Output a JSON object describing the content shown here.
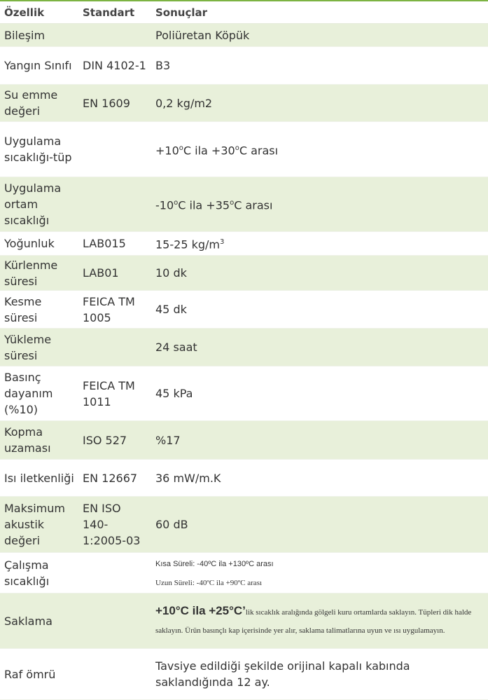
{
  "header": {
    "col1": "Özellik",
    "col2": "Standart",
    "col3": "Sonuçlar"
  },
  "rows": [
    {
      "property": "Bileşim",
      "standard": "",
      "result": [
        {
          "t": "Poliüretan Köpük"
        }
      ],
      "height": 33,
      "shade": true
    },
    {
      "property": "Yangın Sınıfı",
      "standard": " DIN 4102-1",
      "result": [
        {
          "t": "B3"
        }
      ],
      "height": 54,
      "shade": false
    },
    {
      "property": "Su emme değeri",
      "standard": " EN 1609",
      "result": [
        {
          "t": "0,2 kg/m2"
        }
      ],
      "height": 53,
      "shade": true
    },
    {
      "property": "Uygulama sıcaklığı-tüp",
      "standard": "",
      "result": [
        {
          "t": "+10"
        },
        {
          "t": "o",
          "sup": true
        },
        {
          "t": "C ila +30"
        },
        {
          "t": "o",
          "sup": true
        },
        {
          "t": "C arası"
        }
      ],
      "height": 79,
      "shade": false
    },
    {
      "property": "Uygulama ortam sıcaklığı",
      "standard": "",
      "result": [
        {
          "t": "-10"
        },
        {
          "t": "o",
          "sup": true
        },
        {
          "t": "C ila +35"
        },
        {
          "t": "o",
          "sup": true
        },
        {
          "t": "C arası"
        }
      ],
      "height": 78,
      "shade": true
    },
    {
      "property": "Yoğunluk",
      "standard": "LAB015",
      "result": [
        {
          "t": "15-25 kg/m"
        },
        {
          "t": "3",
          "sup": true
        }
      ],
      "height": 34,
      "shade": false
    },
    {
      "property": "Kürlenme süresi",
      "standard": "LAB01",
      "result": [
        {
          "t": "10 dk"
        }
      ],
      "height": 50,
      "shade": true
    },
    {
      "property": "Kesme süresi",
      "standard": "FEICA TM 1005",
      "result": [
        {
          "t": "45 dk"
        }
      ],
      "height": 54,
      "shade": false
    },
    {
      "property": "Yükleme süresi",
      "standard": "",
      "result": [
        {
          "t": "24 saat"
        }
      ],
      "height": 54,
      "shade": true
    },
    {
      "property": "Basınç dayanım (%10)",
      "standard": "FEICA TM 1011",
      "result": [
        {
          "t": "45 kPa"
        }
      ],
      "height": 78,
      "shade": false
    },
    {
      "property": "Kopma uzaması",
      "standard": "ISO 527",
      "result": [
        {
          "t": "%17"
        }
      ],
      "height": 55,
      "shade": true
    },
    {
      "property": "Isı iletkenliği",
      "standard": "EN 12667",
      "result": [
        {
          "t": "36 mW/m.K"
        }
      ],
      "height": 53,
      "shade": false
    },
    {
      "property": "Maksimum akustik değeri",
      "standard": "EN ISO 140-1:2005-03",
      "result": [
        {
          "t": "60 dB"
        }
      ],
      "height": 80,
      "shade": true
    },
    {
      "property": "Çalışma sıcaklığı",
      "standard": "",
      "result": [
        {
          "t": "Kısa Süreli: -40ºC ila +130ºC arası",
          "cls": "small",
          "br": true
        },
        {
          "t": "Uzun Süreli: -40ºC ila +90ºC arası",
          "cls": "serif"
        }
      ],
      "height": 58,
      "shade": false
    },
    {
      "property": "Saklama",
      "standard": "",
      "result": [
        {
          "t": "+10°C ila +25°C’",
          "cls": "big"
        },
        {
          "t": "lik sıcaklık aralığında gölgeli kuru ortamlarda saklayın. Tüpleri dik halde saklayın. Ürün basınçlı kap içerisinde yer alır, saklama talimatlarına uyun ve ısı uygulamayın.",
          "cls": "serif"
        }
      ],
      "height": 79,
      "shade": true
    },
    {
      "property": "Raf ömrü",
      "standard": "",
      "result": [
        {
          "t": "Tavsiye edildiği şekilde orijinal kapalı kabında saklandığında 12 ay."
        }
      ],
      "height": 73,
      "shade": false
    }
  ]
}
